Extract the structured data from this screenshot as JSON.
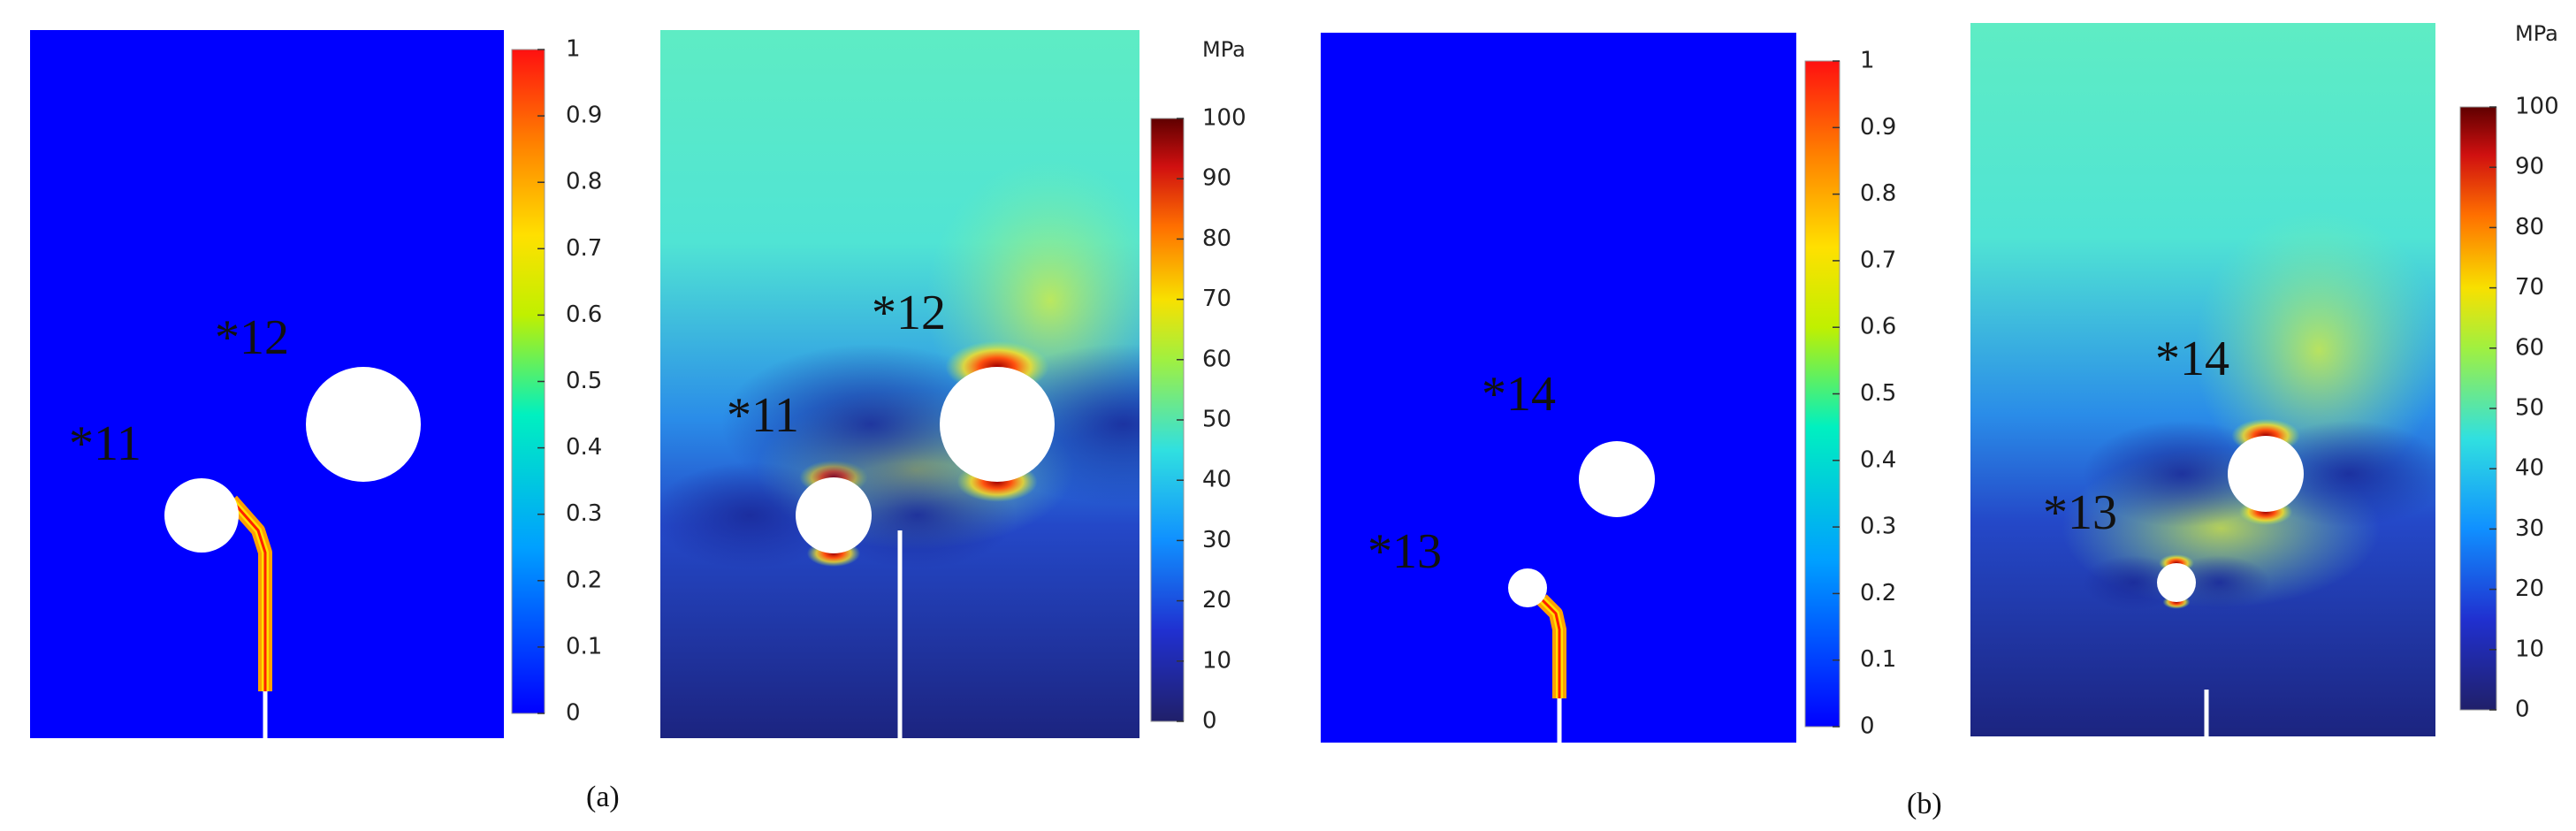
{
  "plots": [
    {
      "labels": [
        "*11",
        "*12"
      ],
      "ticks": [
        0,
        0.1,
        0.2,
        0.3,
        0.4,
        0.5,
        0.6,
        0.7,
        0.8,
        0.9,
        1
      ]
    },
    {
      "unit": "MPa",
      "labels": [
        "*11",
        "*12"
      ],
      "ticks": [
        0,
        10,
        20,
        30,
        40,
        50,
        60,
        70,
        80,
        90,
        100
      ]
    },
    {
      "labels": [
        "*13",
        "*14"
      ],
      "ticks": [
        0,
        0.1,
        0.2,
        0.3,
        0.4,
        0.5,
        0.6,
        0.7,
        0.8,
        0.9,
        1
      ]
    },
    {
      "unit": "MPa",
      "labels": [
        "*13",
        "*14"
      ],
      "ticks": [
        0,
        10,
        20,
        30,
        40,
        50,
        60,
        70,
        80,
        90,
        100
      ]
    }
  ],
  "captions": [
    "(a)",
    "(b)"
  ]
}
